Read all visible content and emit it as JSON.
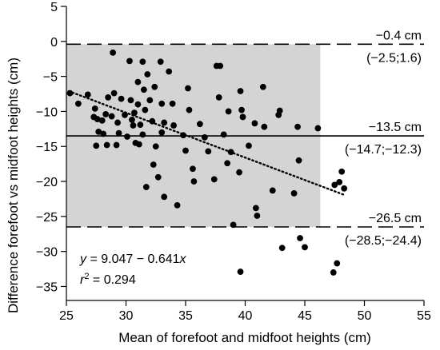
{
  "chart_data": {
    "type": "scatter",
    "xlabel": "Mean of forefoot and midfoot heights (cm)",
    "ylabel": "Difference forefoot vs midfoot heights (cm)",
    "xlim": [
      25,
      55
    ],
    "ylim": [
      -37,
      5
    ],
    "xticks": [
      25,
      30,
      35,
      40,
      45,
      50,
      55
    ],
    "yticks": [
      5,
      0,
      -5,
      -10,
      -15,
      -20,
      -25,
      -30,
      -35
    ],
    "grid": false,
    "shaded_region": {
      "x": [
        25,
        46.3
      ],
      "y": [
        -26.5,
        -0.4
      ]
    },
    "lines": {
      "upper_loa": {
        "y": -0.4,
        "style": "dashed",
        "label": "−0.4 cm",
        "ci": "(−2.5;1.6)"
      },
      "mean_bias": {
        "y": -13.5,
        "style": "solid",
        "label": "−13.5 cm",
        "ci": "(−14.7;−12.3)"
      },
      "lower_loa": {
        "y": -26.5,
        "style": "dashed",
        "label": "−26.5 cm",
        "ci": "(−28.5;−24.4)"
      }
    },
    "regression": {
      "intercept": 9.047,
      "slope": -0.641,
      "x_range": [
        25.2,
        48.3
      ],
      "style": "dotted"
    },
    "annotation": {
      "equation": {
        "y": "y",
        "eq": " = 9.047 − 0.641",
        "x": "x"
      },
      "r2": {
        "r": "r",
        "sup": "2",
        "val": " = 0.294"
      }
    },
    "points": [
      [
        25.3,
        -7.4
      ],
      [
        26.0,
        -8.9
      ],
      [
        26.8,
        -7.6
      ],
      [
        27.4,
        -9.6
      ],
      [
        27.3,
        -10.8
      ],
      [
        27.6,
        -11.1
      ],
      [
        27.7,
        -12.9
      ],
      [
        27.5,
        -14.9
      ],
      [
        28.0,
        -11.3
      ],
      [
        28.1,
        -13.2
      ],
      [
        28.5,
        -8.0
      ],
      [
        28.3,
        -10.4
      ],
      [
        28.4,
        -14.8
      ],
      [
        28.9,
        -1.6
      ],
      [
        28.8,
        -10.7
      ],
      [
        29.0,
        -7.4
      ],
      [
        29.3,
        -11.6
      ],
      [
        29.4,
        -13.1
      ],
      [
        29.6,
        -8.2
      ],
      [
        29.2,
        -14.8
      ],
      [
        29.9,
        -10.5
      ],
      [
        30.1,
        -13.6
      ],
      [
        30.3,
        -2.8
      ],
      [
        30.4,
        -8.4
      ],
      [
        30.5,
        -11.2
      ],
      [
        30.7,
        -10.2
      ],
      [
        30.6,
        -12.0
      ],
      [
        30.8,
        -14.5
      ],
      [
        31.0,
        -5.8
      ],
      [
        31.0,
        -9.0
      ],
      [
        31.2,
        -11.9
      ],
      [
        31.1,
        -14.7
      ],
      [
        31.4,
        -2.9
      ],
      [
        31.5,
        -6.9
      ],
      [
        31.6,
        -9.8
      ],
      [
        31.4,
        -13.3
      ],
      [
        31.7,
        -20.8
      ],
      [
        31.8,
        -4.7
      ],
      [
        32.0,
        -8.4
      ],
      [
        32.2,
        -11.4
      ],
      [
        32.4,
        -6.5
      ],
      [
        32.5,
        -15.0
      ],
      [
        32.3,
        -17.6
      ],
      [
        32.7,
        -19.4
      ],
      [
        32.9,
        -2.9
      ],
      [
        33.0,
        -8.9
      ],
      [
        33.2,
        -11.6
      ],
      [
        33.0,
        -13.0
      ],
      [
        33.2,
        -22.2
      ],
      [
        33.6,
        -4.3
      ],
      [
        33.9,
        -8.9
      ],
      [
        34.0,
        -12.0
      ],
      [
        34.3,
        -23.4
      ],
      [
        34.8,
        -13.4
      ],
      [
        35.0,
        -15.6
      ],
      [
        35.2,
        -6.7
      ],
      [
        35.3,
        -9.8
      ],
      [
        35.6,
        -18.2
      ],
      [
        35.7,
        -20.0
      ],
      [
        36.2,
        -11.8
      ],
      [
        36.6,
        -13.7
      ],
      [
        36.9,
        -15.7
      ],
      [
        37.4,
        -19.7
      ],
      [
        37.6,
        -3.5
      ],
      [
        37.8,
        -8.0
      ],
      [
        37.9,
        -3.5
      ],
      [
        38.2,
        -13.3
      ],
      [
        38.5,
        -17.4
      ],
      [
        38.6,
        -10.0
      ],
      [
        38.8,
        -15.8
      ],
      [
        39.0,
        -26.2
      ],
      [
        39.6,
        -7.1
      ],
      [
        39.7,
        -9.8
      ],
      [
        39.8,
        -10.8
      ],
      [
        39.5,
        -18.7
      ],
      [
        39.6,
        -32.9
      ],
      [
        40.3,
        -14.9
      ],
      [
        40.8,
        -11.7
      ],
      [
        40.9,
        -23.8
      ],
      [
        41.0,
        -24.9
      ],
      [
        41.5,
        -6.5
      ],
      [
        41.6,
        -12.2
      ],
      [
        42.3,
        -21.3
      ],
      [
        42.9,
        -9.9
      ],
      [
        42.8,
        -10.5
      ],
      [
        43.1,
        -29.5
      ],
      [
        44.1,
        -21.7
      ],
      [
        44.4,
        -12.2
      ],
      [
        44.5,
        -17.0
      ],
      [
        44.6,
        -28.1
      ],
      [
        45.0,
        -29.4
      ],
      [
        46.1,
        -12.4
      ],
      [
        47.4,
        -33.0
      ],
      [
        47.5,
        -20.5
      ],
      [
        47.7,
        -31.7
      ],
      [
        47.9,
        -20.1
      ],
      [
        48.1,
        -18.6
      ],
      [
        48.3,
        -21.0
      ]
    ]
  }
}
